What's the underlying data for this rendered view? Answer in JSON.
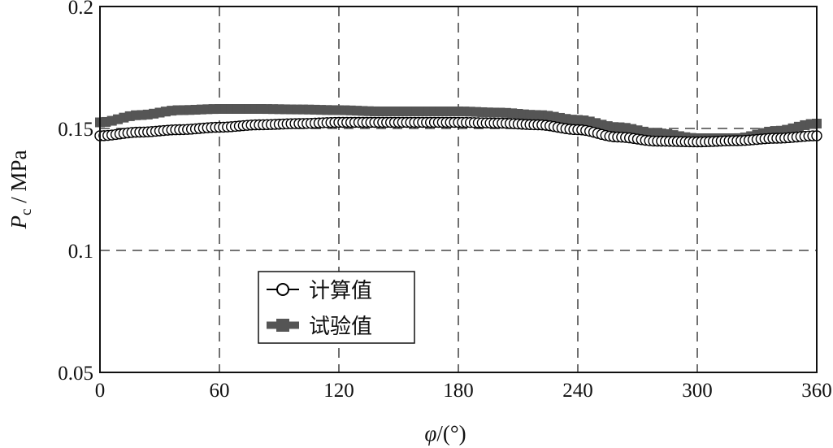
{
  "chart_data": {
    "type": "line",
    "title": "",
    "xlabel_main": "φ",
    "xlabel_unit": "/(°)",
    "ylabel_main": "P",
    "ylabel_sub": "c",
    "ylabel_unit": " / MPa",
    "xlim": [
      0,
      360
    ],
    "ylim": [
      0.05,
      0.2
    ],
    "x_ticks": [
      0,
      60,
      120,
      180,
      240,
      300,
      360
    ],
    "x_tick_labels": [
      "0",
      "60",
      "120",
      "180",
      "240",
      "300",
      "360"
    ],
    "y_ticks": [
      0.05,
      0.1,
      0.15,
      0.2
    ],
    "y_tick_labels": [
      "0.05",
      "0.1",
      "0.15",
      "0.2"
    ],
    "grid": true,
    "legend_position": "lower-left",
    "series": [
      {
        "name": "计算值",
        "marker": "open-circle",
        "color": "#000000",
        "x": [
          0,
          20,
          40,
          60,
          80,
          100,
          120,
          140,
          160,
          180,
          200,
          220,
          240,
          260,
          280,
          300,
          320,
          340,
          360
        ],
        "y": [
          0.147,
          0.1485,
          0.1495,
          0.1505,
          0.1515,
          0.152,
          0.1525,
          0.1525,
          0.1525,
          0.1525,
          0.1522,
          0.1515,
          0.1495,
          0.1465,
          0.1448,
          0.1445,
          0.145,
          0.146,
          0.147
        ]
      },
      {
        "name": "试验值",
        "marker": "filled-square",
        "color": "#555555",
        "x": [
          0,
          20,
          40,
          60,
          80,
          100,
          120,
          140,
          160,
          180,
          200,
          220,
          240,
          260,
          280,
          300,
          320,
          340,
          360
        ],
        "y": [
          0.1525,
          0.1555,
          0.1575,
          0.158,
          0.158,
          0.1578,
          0.1575,
          0.157,
          0.157,
          0.157,
          0.1565,
          0.1555,
          0.1535,
          0.1505,
          0.148,
          0.146,
          0.146,
          0.149,
          0.152
        ]
      }
    ]
  }
}
